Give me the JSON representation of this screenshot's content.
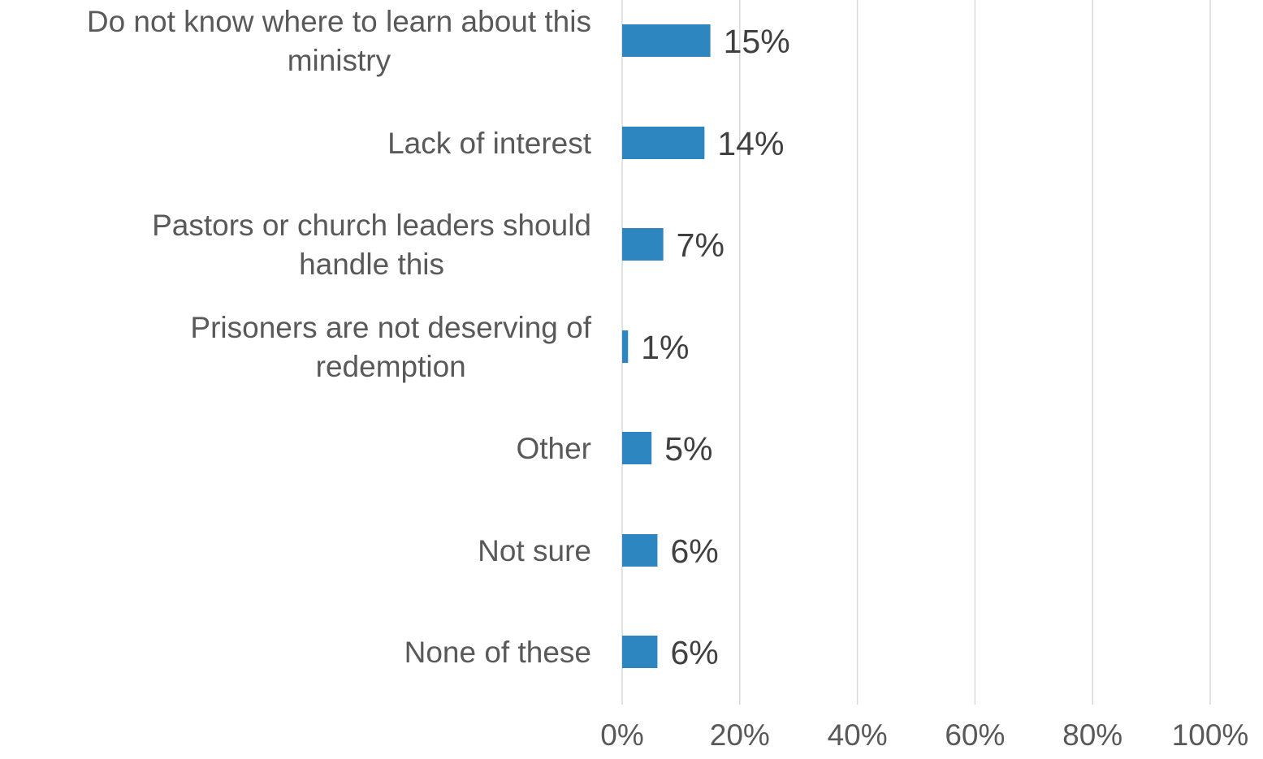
{
  "chart_data": {
    "type": "bar",
    "orientation": "horizontal",
    "categories": [
      [
        "Do not know where to learn about this",
        "ministry"
      ],
      [
        "Lack of interest"
      ],
      [
        "Pastors or church leaders should",
        "handle this"
      ],
      [
        "Prisoners are not deserving of",
        "redemption"
      ],
      [
        "Other"
      ],
      [
        "Not sure"
      ],
      [
        "None of these"
      ]
    ],
    "values": [
      15,
      14,
      7,
      1,
      5,
      6,
      6
    ],
    "value_labels": [
      "15%",
      "14%",
      "7%",
      "1%",
      "5%",
      "6%",
      "6%"
    ],
    "xlim": [
      0,
      100
    ],
    "x_ticks": [
      0,
      20,
      40,
      60,
      80,
      100
    ],
    "x_tick_labels": [
      "0%",
      "20%",
      "40%",
      "60%",
      "80%",
      "100%"
    ],
    "grid": "vertical",
    "legend": "none",
    "colors": {
      "bar": "#2e86c1",
      "gridline": "#d9d9d9",
      "category_text": "#595959",
      "value_text": "#404040"
    }
  }
}
